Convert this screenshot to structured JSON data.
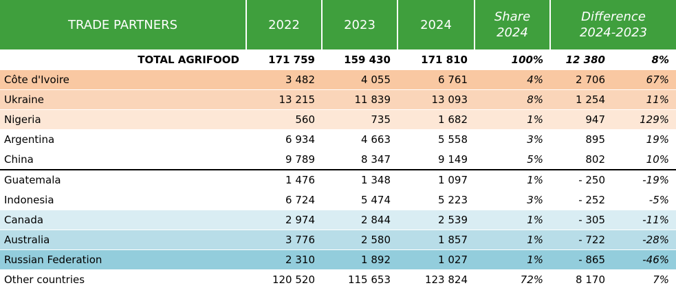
{
  "header": {
    "columns": [
      [
        "TRADE PARTNERS"
      ],
      [
        "2022"
      ],
      [
        "2023"
      ],
      [
        "2024"
      ],
      [
        "Share",
        "2024"
      ],
      [
        "Difference",
        "2024-2023"
      ]
    ]
  },
  "total": {
    "label": "TOTAL AGRIFOOD",
    "cells": [
      "171 759",
      "159 430",
      "171 810",
      "100%",
      "12 380",
      "8%"
    ]
  },
  "rows": [
    {
      "label": "Côte d'Ivoire",
      "color": "#f9c8a2",
      "cells": [
        "3 482",
        "4 055",
        "6 761",
        "4%",
        "2 706",
        "67%"
      ]
    },
    {
      "label": "Ukraine",
      "color": "#fad5b9",
      "cells": [
        "13 215",
        "11 839",
        "13 093",
        "8%",
        "1 254",
        "11%"
      ]
    },
    {
      "label": "Nigeria",
      "color": "#fde7d6",
      "cells": [
        "560",
        "735",
        "1 682",
        "1%",
        "947",
        "129%"
      ]
    },
    {
      "label": "Argentina",
      "cells": [
        "6 934",
        "4 663",
        "5 558",
        "3%",
        "895",
        "19%"
      ]
    },
    {
      "label": "China",
      "cells": [
        "9 789",
        "8 347",
        "9 149",
        "5%",
        "802",
        "10%"
      ]
    },
    {
      "label": "Guatemala",
      "cells": [
        "1 476",
        "1 348",
        "1 097",
        "1%",
        "- 250",
        "-19%"
      ]
    },
    {
      "label": "Indonesia",
      "cells": [
        "6 724",
        "5 474",
        "5 223",
        "3%",
        "- 252",
        "-5%"
      ]
    },
    {
      "label": "Canada",
      "color": "#d9edf3",
      "cells": [
        "2 974",
        "2 844",
        "2 539",
        "1%",
        "- 305",
        "-11%"
      ]
    },
    {
      "label": "Australia",
      "color": "#b8dde8",
      "cells": [
        "3 776",
        "2 580",
        "1 857",
        "1%",
        "- 722",
        "-28%"
      ]
    },
    {
      "label": "Russian Federation",
      "color": "#93cddc",
      "cells": [
        "2 310",
        "1 892",
        "1 027",
        "1%",
        "- 865",
        "-46%"
      ]
    },
    {
      "label": "Other countries",
      "cells": [
        "120 520",
        "115 653",
        "123 824",
        "72%",
        "8 170",
        "7%"
      ]
    }
  ]
}
